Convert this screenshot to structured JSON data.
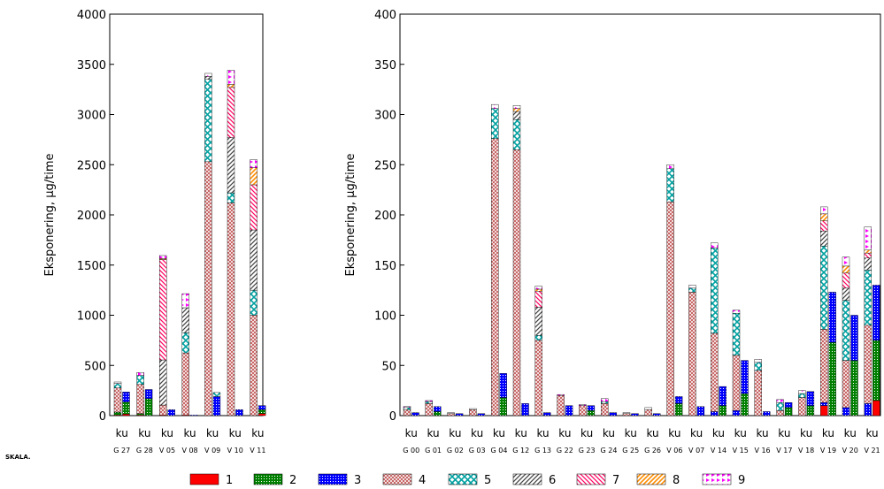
{
  "footer_label": "SKALA.",
  "legend": [
    {
      "label": "1",
      "color": "#ff0000",
      "pattern": "solid"
    },
    {
      "label": "2",
      "color": "#008000",
      "pattern": "dots"
    },
    {
      "label": "3",
      "color": "#0000ff",
      "pattern": "dots"
    },
    {
      "label": "4",
      "color": "#c05050",
      "pattern": "cross"
    },
    {
      "label": "5",
      "color": "#00a0a0",
      "pattern": "xcross"
    },
    {
      "label": "6",
      "color": "#404040",
      "pattern": "diag"
    },
    {
      "label": "7",
      "color": "#ff0060",
      "pattern": "diagrev"
    },
    {
      "label": "8",
      "color": "#ff8c00",
      "pattern": "diag"
    },
    {
      "label": "9",
      "color": "#ff00ff",
      "pattern": "flags"
    }
  ],
  "chart_data": [
    {
      "type": "bar",
      "stacked": true,
      "ylabel": "Eksponering, μg/time",
      "ylim": [
        0,
        4000
      ],
      "yticks": [
        0,
        500,
        1000,
        1500,
        2000,
        2500,
        3000,
        3500,
        4000
      ],
      "grid": false,
      "legend_position": "bottom",
      "groups": [
        {
          "top": "ku",
          "bottom": "G 27",
          "bars": [
            [
              5,
              30,
              0,
              240,
              45,
              0,
              0,
              0,
              15
            ],
            [
              15,
              120,
              100,
              0,
              0,
              0,
              0,
              0,
              0
            ]
          ]
        },
        {
          "top": "ku",
          "bottom": "G 28",
          "bars": [
            [
              5,
              15,
              0,
              290,
              90,
              0,
              0,
              0,
              30
            ],
            [
              0,
              170,
              90,
              0,
              0,
              0,
              0,
              0,
              0
            ]
          ]
        },
        {
          "top": "ku",
          "bottom": "V 05",
          "bars": [
            [
              5,
              0,
              0,
              100,
              0,
              450,
              1000,
              10,
              30
            ],
            [
              0,
              0,
              60,
              0,
              0,
              0,
              0,
              0,
              0
            ]
          ]
        },
        {
          "top": "ku",
          "bottom": "V 08",
          "bars": [
            [
              5,
              0,
              0,
              620,
              200,
              250,
              0,
              0,
              140
            ],
            [
              0,
              0,
              5,
              0,
              0,
              0,
              0,
              0,
              0
            ]
          ]
        },
        {
          "top": "ku",
          "bottom": "V 09",
          "bars": [
            [
              0,
              0,
              0,
              2530,
              820,
              30,
              0,
              0,
              30
            ],
            [
              0,
              0,
              190,
              0,
              40,
              0,
              0,
              0,
              0
            ]
          ]
        },
        {
          "top": "ku",
          "bottom": "V 10",
          "bars": [
            [
              0,
              0,
              0,
              2120,
              100,
              550,
              500,
              30,
              140
            ],
            [
              0,
              0,
              60,
              0,
              0,
              0,
              0,
              0,
              0
            ]
          ]
        },
        {
          "top": "ku",
          "bottom": "V 11",
          "bars": [
            [
              0,
              0,
              0,
              1000,
              250,
              600,
              450,
              170,
              80
            ],
            [
              20,
              40,
              40,
              0,
              0,
              0,
              0,
              0,
              0
            ]
          ]
        }
      ]
    },
    {
      "type": "bar",
      "stacked": true,
      "ylabel": "Eksponering, μg/time",
      "ylim": [
        0,
        400
      ],
      "yticks": [
        0,
        50,
        100,
        150,
        200,
        250,
        300,
        350,
        400
      ],
      "grid": false,
      "legend_position": "bottom",
      "groups": [
        {
          "top": "ku",
          "bottom": "G 00",
          "bars": [
            [
              0,
              0,
              0,
              6,
              2,
              0,
              0,
              0,
              1
            ],
            [
              0,
              0,
              3,
              0,
              0,
              0,
              0,
              0,
              0
            ]
          ]
        },
        {
          "top": "ku",
          "bottom": "G 01",
          "bars": [
            [
              0,
              0,
              0,
              12,
              2,
              0,
              0,
              0,
              1
            ],
            [
              0,
              4,
              5,
              0,
              0,
              0,
              0,
              0,
              0
            ]
          ]
        },
        {
          "top": "ku",
          "bottom": "G 02",
          "bars": [
            [
              0,
              0,
              0,
              2,
              0,
              0,
              0,
              0,
              1
            ],
            [
              0,
              0,
              2,
              0,
              0,
              0,
              0,
              0,
              0
            ]
          ]
        },
        {
          "top": "ku",
          "bottom": "G 03",
          "bars": [
            [
              0,
              0,
              0,
              6,
              0,
              0,
              0,
              0,
              1
            ],
            [
              0,
              0,
              2,
              0,
              0,
              0,
              0,
              0,
              0
            ]
          ]
        },
        {
          "top": "ku",
          "bottom": "G 04",
          "bars": [
            [
              0,
              0,
              0,
              276,
              30,
              0,
              0,
              0,
              4
            ],
            [
              0,
              18,
              24,
              0,
              0,
              0,
              0,
              0,
              0
            ]
          ]
        },
        {
          "top": "ku",
          "bottom": "G 12",
          "bars": [
            [
              0,
              0,
              0,
              265,
              30,
              8,
              0,
              3,
              3
            ],
            [
              0,
              0,
              12,
              0,
              0,
              0,
              0,
              0,
              0
            ]
          ]
        },
        {
          "top": "ku",
          "bottom": "G 13",
          "bars": [
            [
              0,
              0,
              0,
              75,
              5,
              28,
              16,
              2,
              3
            ],
            [
              0,
              0,
              3,
              0,
              0,
              0,
              0,
              0,
              0
            ]
          ]
        },
        {
          "top": "ku",
          "bottom": "G 22",
          "bars": [
            [
              0,
              0,
              0,
              20,
              0,
              0,
              0,
              0,
              1
            ],
            [
              0,
              0,
              10,
              0,
              0,
              0,
              0,
              0,
              0
            ]
          ]
        },
        {
          "top": "ku",
          "bottom": "G 23",
          "bars": [
            [
              0,
              0,
              0,
              10,
              0,
              0,
              0,
              0,
              1
            ],
            [
              0,
              5,
              5,
              0,
              0,
              0,
              0,
              0,
              0
            ]
          ]
        },
        {
          "top": "ku",
          "bottom": "G 24",
          "bars": [
            [
              0,
              0,
              0,
              12,
              2,
              0,
              0,
              0,
              3
            ],
            [
              0,
              0,
              3,
              0,
              0,
              0,
              0,
              0,
              0
            ]
          ]
        },
        {
          "top": "ku",
          "bottom": "G 25",
          "bars": [
            [
              0,
              0,
              0,
              2,
              0,
              0,
              0,
              0,
              1
            ],
            [
              0,
              0,
              2,
              0,
              0,
              0,
              0,
              0,
              0
            ]
          ]
        },
        {
          "top": "ku",
          "bottom": "G 26",
          "bars": [
            [
              0,
              0,
              0,
              6,
              0,
              0,
              0,
              0,
              2
            ],
            [
              0,
              0,
              2,
              0,
              0,
              0,
              0,
              0,
              0
            ]
          ]
        },
        {
          "top": "ku",
          "bottom": "V 06",
          "bars": [
            [
              0,
              0,
              0,
              213,
              33,
              0,
              0,
              0,
              4
            ],
            [
              0,
              12,
              7,
              0,
              0,
              0,
              0,
              0,
              0
            ]
          ]
        },
        {
          "top": "ku",
          "bottom": "V 07",
          "bars": [
            [
              0,
              0,
              0,
              123,
              4,
              0,
              0,
              0,
              3
            ],
            [
              0,
              0,
              9,
              0,
              0,
              0,
              0,
              0,
              0
            ]
          ]
        },
        {
          "top": "ku",
          "bottom": "V 14",
          "bars": [
            [
              0,
              0,
              4,
              78,
              85,
              0,
              0,
              0,
              5
            ],
            [
              0,
              10,
              19,
              0,
              0,
              0,
              0,
              0,
              0
            ]
          ]
        },
        {
          "top": "ku",
          "bottom": "V 15",
          "bars": [
            [
              0,
              0,
              5,
              55,
              42,
              0,
              0,
              0,
              3
            ],
            [
              0,
              22,
              33,
              0,
              0,
              0,
              0,
              0,
              0
            ]
          ]
        },
        {
          "top": "ku",
          "bottom": "V 16",
          "bars": [
            [
              0,
              0,
              0,
              45,
              8,
              0,
              0,
              0,
              3
            ],
            [
              0,
              0,
              4,
              0,
              0,
              0,
              0,
              0,
              0
            ]
          ]
        },
        {
          "top": "ku",
          "bottom": "V 17",
          "bars": [
            [
              0,
              0,
              0,
              5,
              8,
              0,
              0,
              0,
              3
            ],
            [
              0,
              8,
              5,
              0,
              0,
              0,
              0,
              0,
              0
            ]
          ]
        },
        {
          "top": "ku",
          "bottom": "V 18",
          "bars": [
            [
              0,
              0,
              0,
              18,
              4,
              0,
              0,
              0,
              3
            ],
            [
              0,
              10,
              14,
              0,
              0,
              0,
              0,
              0,
              0
            ]
          ]
        },
        {
          "top": "ku",
          "bottom": "V 19",
          "bars": [
            [
              10,
              0,
              3,
              73,
              83,
              15,
              10,
              7,
              7
            ],
            [
              0,
              73,
              50,
              0,
              0,
              0,
              0,
              0,
              0
            ]
          ]
        },
        {
          "top": "ku",
          "bottom": "V 20",
          "bars": [
            [
              0,
              0,
              8,
              47,
              60,
              12,
              15,
              7,
              9
            ],
            [
              0,
              55,
              45,
              0,
              0,
              0,
              0,
              0,
              0
            ]
          ]
        },
        {
          "top": "ku",
          "bottom": "V 21",
          "bars": [
            [
              0,
              0,
              12,
              78,
              55,
              12,
              5,
              3,
              23
            ],
            [
              15,
              60,
              55,
              0,
              0,
              0,
              0,
              0,
              0
            ]
          ]
        }
      ]
    }
  ]
}
